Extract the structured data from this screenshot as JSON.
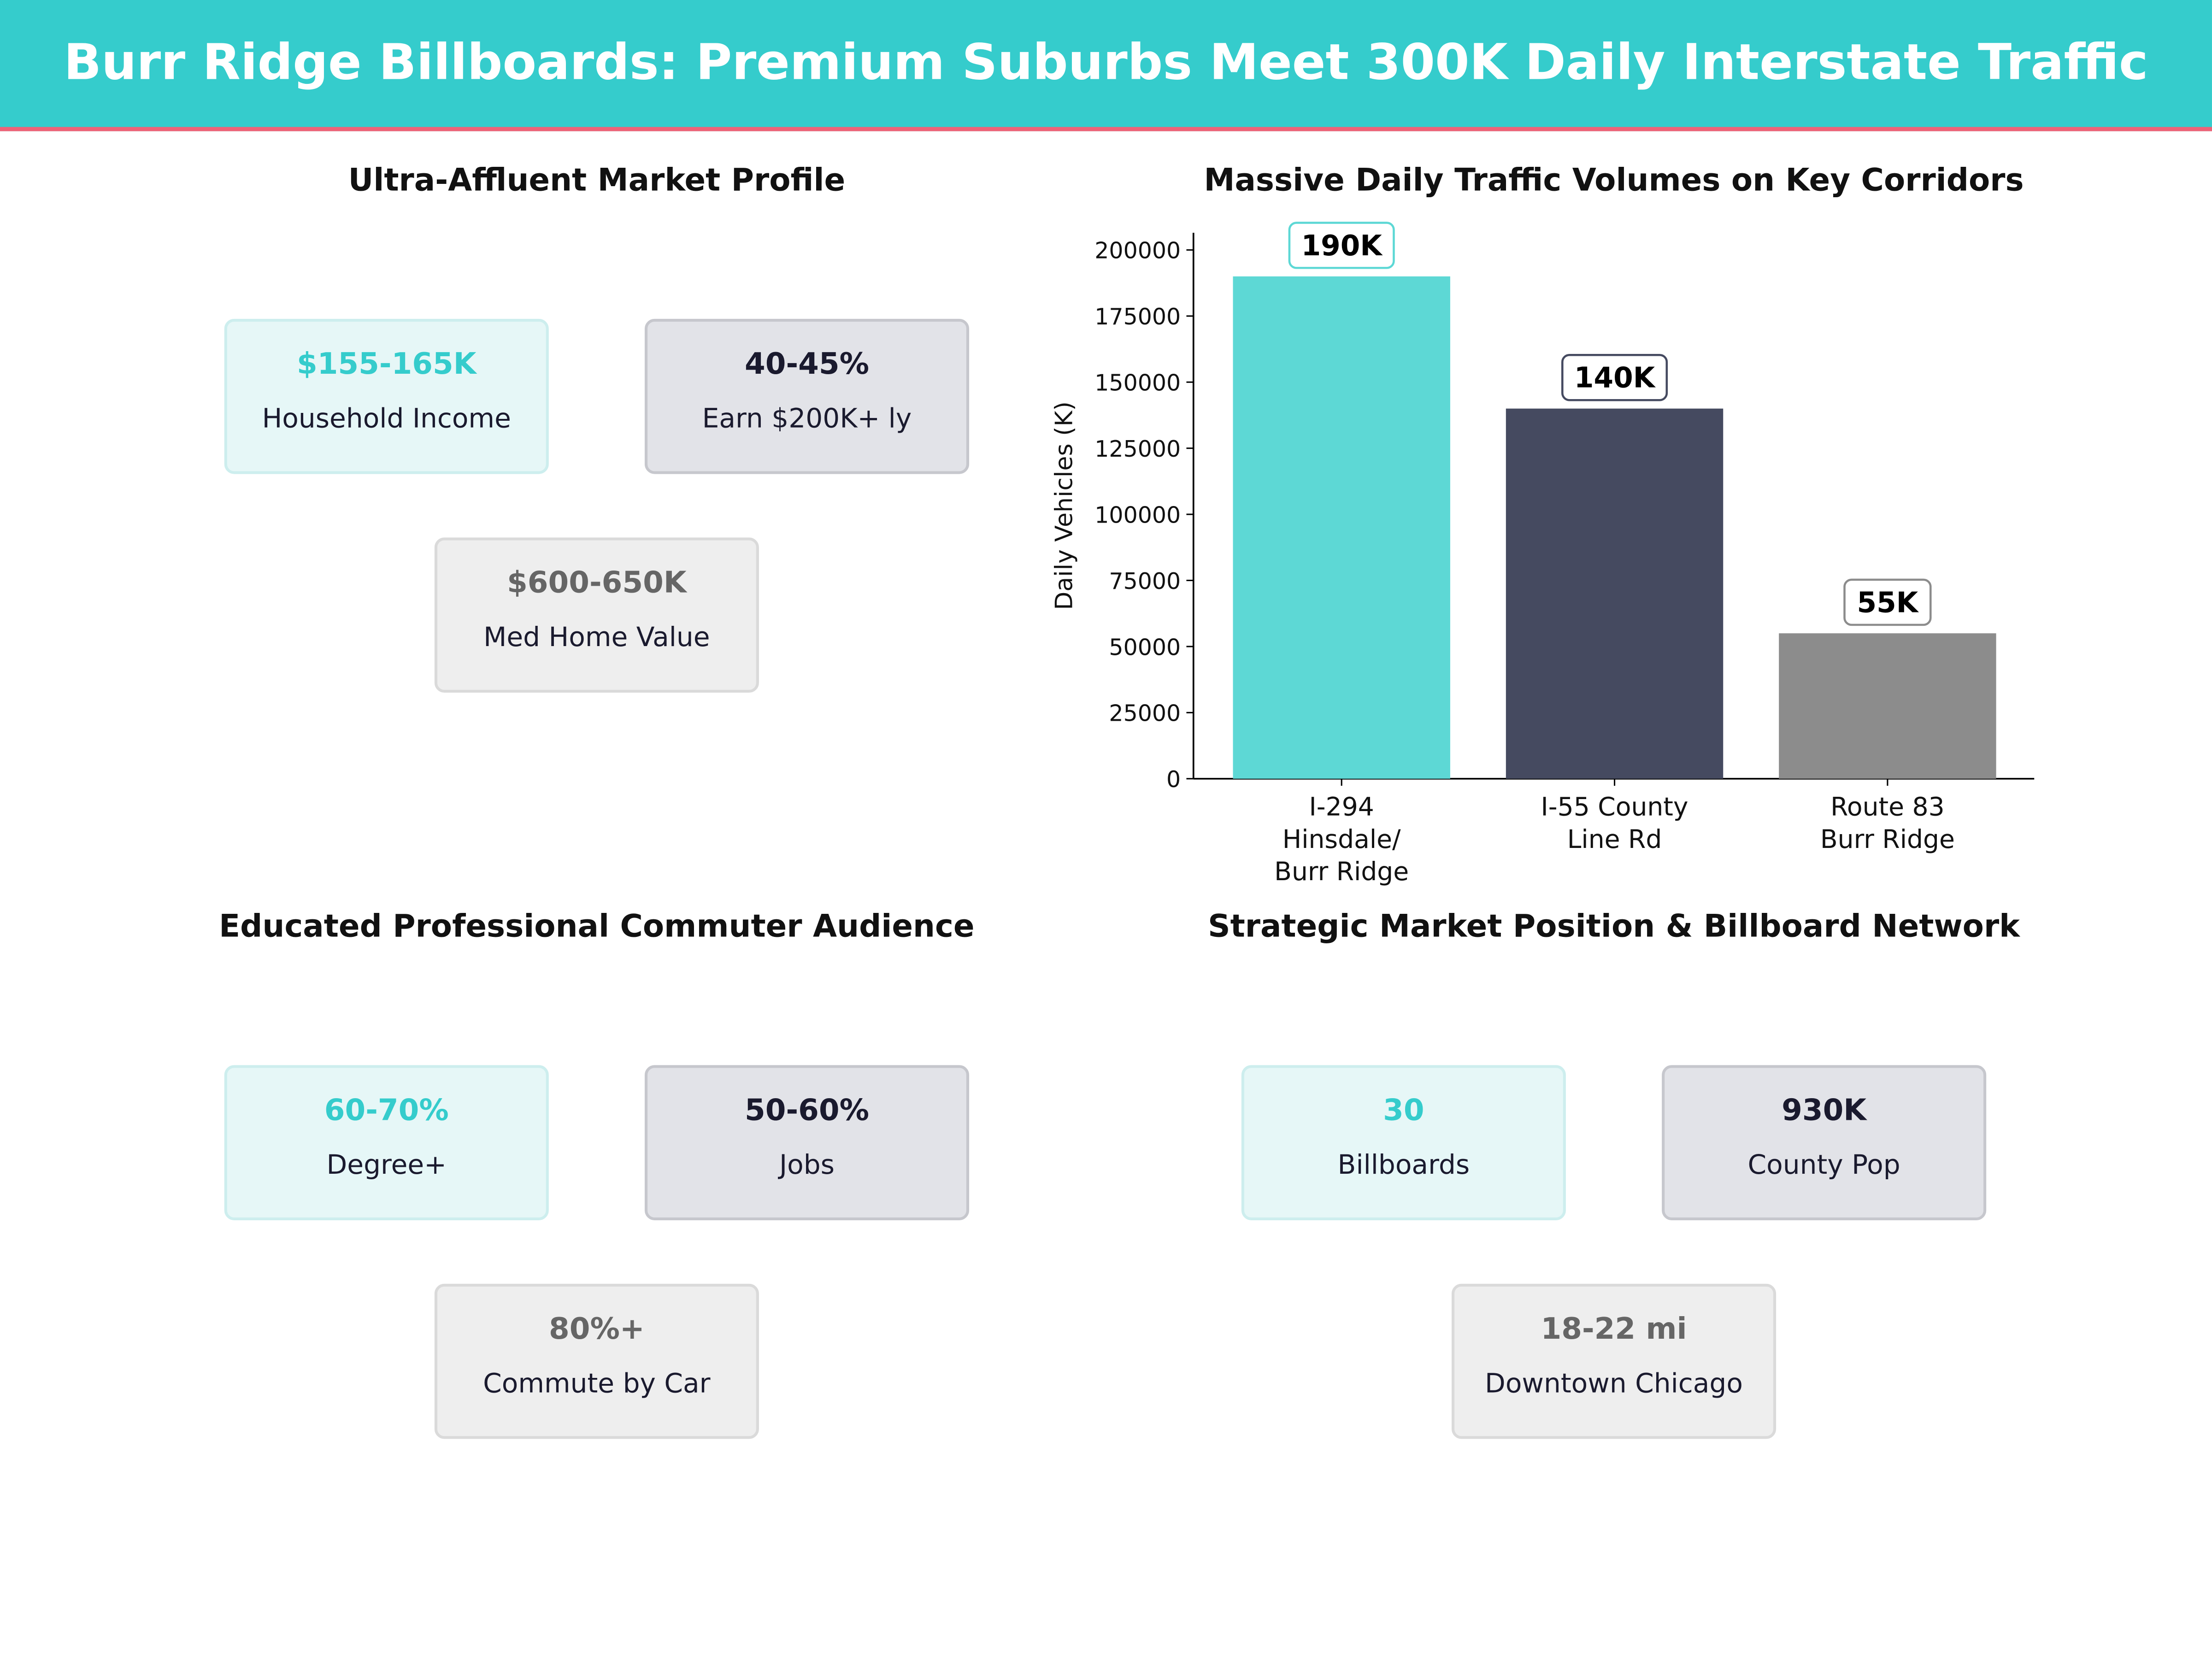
{
  "header": {
    "title": "Burr Ridge Billboards: Premium Suburbs Meet 300K Daily Interstate Traffic",
    "bg_color": "#35cccc",
    "accent_line": "#f06277"
  },
  "panels": {
    "market": {
      "title": "Ultra-Affluent Market Profile",
      "cards": [
        {
          "value": "$155-165K",
          "label": "Household Income"
        },
        {
          "value": "40-45%",
          "label": "Earn $200K+ ly"
        },
        {
          "value": "$600-650K",
          "label": "Med Home Value"
        }
      ]
    },
    "audience": {
      "title": "Educated Professional Commuter Audience",
      "cards": [
        {
          "value": "60-70%",
          "label": "Degree+"
        },
        {
          "value": "50-60%",
          "label": "Jobs"
        },
        {
          "value": "80%+",
          "label": "Commute by Car"
        }
      ]
    },
    "network": {
      "title": "Strategic Market Position & Billboard Network",
      "cards": [
        {
          "value": "30",
          "label": "Billboards"
        },
        {
          "value": "930K",
          "label": "County Pop"
        },
        {
          "value": "18-22 mi",
          "label": "Downtown Chicago"
        }
      ]
    }
  },
  "chart_data": {
    "type": "bar",
    "title": "Massive Daily Traffic Volumes on Key Corridors",
    "categories": [
      [
        "I-294",
        "Hinsdale/",
        "Burr Ridge"
      ],
      [
        "I-55 County",
        "Line Rd"
      ],
      [
        "Route 83",
        "Burr Ridge"
      ]
    ],
    "values": [
      190000,
      140000,
      55000
    ],
    "data_labels": [
      "190K",
      "140K",
      "55K"
    ],
    "colors": [
      "#5dd8d5",
      "#454a60",
      "#8c8c8c"
    ],
    "label_border_colors": [
      "#5dd8d5",
      "#454a60",
      "#8c8c8c"
    ],
    "xlabel": "",
    "ylabel": "Daily Vehicles (K)",
    "ylim": [
      0,
      206500
    ],
    "yticks": [
      0,
      25000,
      50000,
      75000,
      100000,
      125000,
      150000,
      175000,
      200000
    ],
    "grid": false
  }
}
